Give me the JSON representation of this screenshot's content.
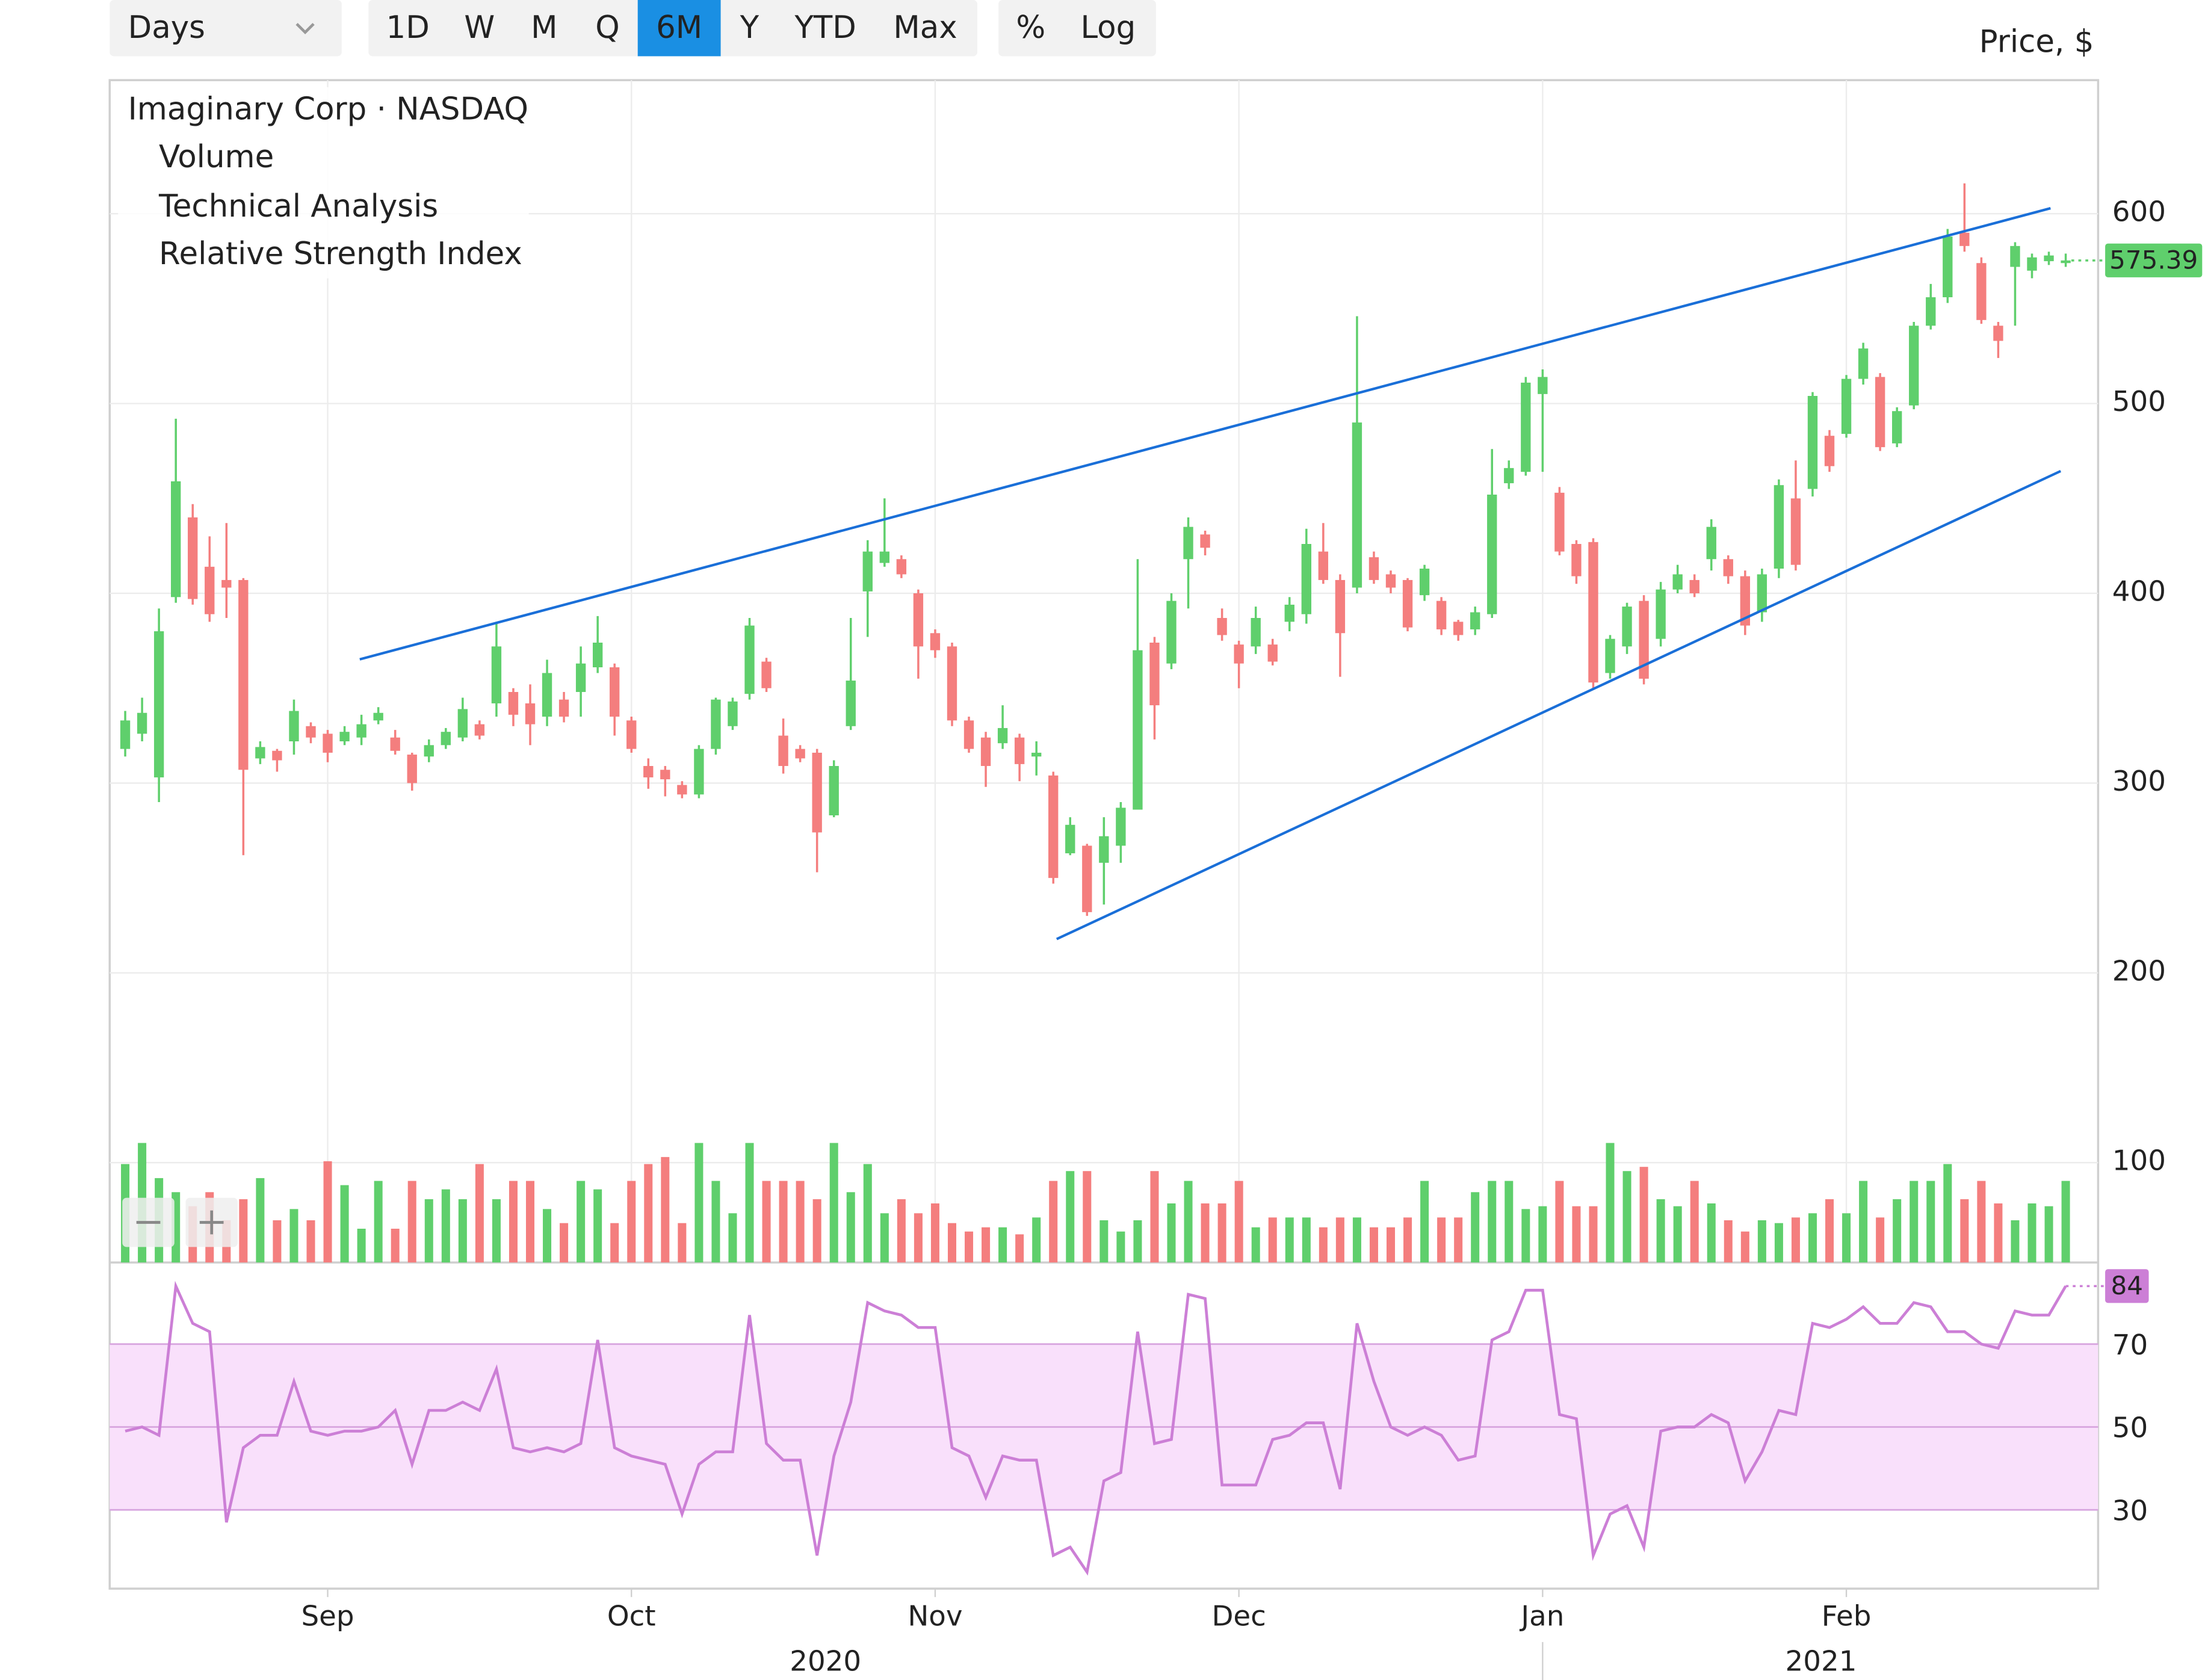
{
  "toolbar": {
    "interval": "Days",
    "ranges": [
      "1D",
      "W",
      "M",
      "Q",
      "6M",
      "Y",
      "YTD",
      "Max"
    ],
    "active": 4,
    "options": [
      "%",
      "Log"
    ]
  },
  "chart_data": {
    "type": "candlestick",
    "title": "Imaginary Corp · NASDAQ",
    "y_label": "Price, $",
    "categories": [
      null,
      null,
      null,
      null,
      null,
      null,
      null,
      null,
      null,
      null,
      null,
      null,
      null,
      null,
      null,
      null,
      null,
      null,
      null,
      null,
      null,
      null,
      null,
      null,
      null,
      null,
      null,
      null,
      null,
      null,
      null,
      null,
      null,
      null,
      null,
      null,
      null,
      null,
      null,
      null,
      null,
      null,
      null,
      null,
      null,
      null,
      null,
      null,
      null,
      null,
      null,
      null,
      null,
      null,
      null,
      null,
      null,
      null,
      null,
      null,
      null,
      null,
      null,
      null,
      null,
      null,
      null,
      null,
      null,
      null,
      null,
      null,
      null,
      null,
      null,
      null,
      null,
      null,
      null,
      null,
      null,
      null,
      null,
      null,
      null,
      null,
      null,
      null,
      null,
      null,
      null,
      null,
      null,
      null,
      null,
      null,
      null,
      null,
      null,
      null,
      null,
      null,
      null,
      null,
      null,
      null,
      null,
      null,
      null,
      null,
      null,
      null,
      null,
      null,
      null,
      null
    ],
    "open": [
      318,
      326,
      303,
      398,
      440,
      414,
      407,
      407,
      313,
      317,
      322,
      330,
      326,
      322,
      324,
      333,
      324,
      315,
      314,
      320,
      324,
      331,
      342,
      348,
      342,
      335,
      344,
      348,
      361,
      361,
      333,
      309,
      307,
      299,
      294,
      318,
      330,
      347,
      364,
      325,
      318,
      316,
      283,
      330,
      401,
      416,
      418,
      400,
      379,
      372,
      333,
      324,
      321,
      324,
      314,
      304,
      263,
      267,
      258,
      267,
      286,
      374,
      363,
      418,
      431,
      387,
      373,
      372,
      373,
      385,
      389,
      422,
      407,
      403,
      419,
      410,
      407,
      399,
      396,
      385,
      381,
      389,
      458,
      464,
      505,
      453,
      426,
      427,
      358,
      372,
      396,
      376,
      402,
      407,
      418,
      418,
      409,
      390,
      413,
      450,
      455,
      483,
      484,
      513,
      514,
      479,
      499,
      541,
      556,
      590,
      574,
      541,
      572,
      570,
      575,
      574
    ],
    "high": [
      338,
      345,
      392,
      492,
      447,
      430,
      437,
      408,
      322,
      318,
      344,
      332,
      328,
      330,
      336,
      340,
      328,
      316,
      323,
      329,
      345,
      333,
      385,
      350,
      352,
      365,
      348,
      372,
      388,
      363,
      335,
      313,
      309,
      301,
      320,
      345,
      345,
      387,
      366,
      334,
      320,
      318,
      312,
      387,
      428,
      450,
      420,
      402,
      381,
      374,
      335,
      327,
      341,
      326,
      322,
      306,
      282,
      268,
      282,
      290,
      418,
      377,
      400,
      440,
      433,
      392,
      375,
      393,
      376,
      398,
      434,
      437,
      410,
      546,
      422,
      412,
      408,
      415,
      398,
      386,
      393,
      476,
      470,
      514,
      518,
      456,
      428,
      429,
      378,
      395,
      399,
      406,
      415,
      410,
      439,
      420,
      412,
      413,
      460,
      470,
      506,
      486,
      515,
      532,
      516,
      498,
      543,
      563,
      592,
      616,
      577,
      543,
      585,
      579,
      580,
      579
    ],
    "low": [
      314,
      322,
      290,
      395,
      394,
      385,
      387,
      262,
      310,
      306,
      315,
      321,
      311,
      320,
      320,
      331,
      315,
      296,
      311,
      318,
      322,
      323,
      335,
      330,
      320,
      330,
      332,
      335,
      358,
      325,
      316,
      297,
      293,
      292,
      292,
      315,
      328,
      344,
      348,
      305,
      311,
      253,
      282,
      328,
      377,
      414,
      408,
      355,
      366,
      330,
      316,
      298,
      318,
      301,
      304,
      247,
      262,
      230,
      236,
      258,
      286,
      323,
      360,
      392,
      420,
      375,
      350,
      368,
      362,
      380,
      384,
      405,
      356,
      400,
      405,
      400,
      380,
      396,
      378,
      375,
      378,
      387,
      455,
      462,
      464,
      420,
      405,
      350,
      355,
      368,
      352,
      372,
      400,
      398,
      412,
      405,
      378,
      385,
      408,
      412,
      451,
      464,
      482,
      510,
      475,
      477,
      497,
      539,
      553,
      580,
      542,
      524,
      541,
      566,
      573,
      572
    ],
    "close": [
      333,
      337,
      380,
      459,
      397,
      389,
      403,
      307,
      319,
      312,
      338,
      324,
      316,
      327,
      331,
      337,
      317,
      300,
      320,
      327,
      339,
      325,
      372,
      336,
      331,
      358,
      335,
      363,
      374,
      335,
      318,
      303,
      302,
      294,
      318,
      344,
      343,
      383,
      350,
      309,
      313,
      274,
      309,
      354,
      422,
      422,
      410,
      372,
      370,
      333,
      318,
      309,
      329,
      310,
      316,
      250,
      278,
      232,
      272,
      287,
      370,
      341,
      396,
      435,
      424,
      378,
      363,
      387,
      364,
      394,
      426,
      407,
      379,
      490,
      407,
      403,
      382,
      413,
      381,
      378,
      390,
      452,
      466,
      511,
      514,
      422,
      409,
      353,
      376,
      393,
      355,
      402,
      410,
      400,
      435,
      409,
      383,
      410,
      457,
      415,
      504,
      467,
      513,
      529,
      477,
      496,
      541,
      556,
      588,
      583,
      544,
      533,
      583,
      577,
      578,
      575.39
    ],
    "up_color": "#5fcf6c",
    "down_color": "#f47e7e",
    "xlim": [
      -0.92,
      116.92
    ],
    "xticks": [
      {
        "value": 12,
        "label": "Sep"
      },
      {
        "value": 30,
        "label": "Oct"
      },
      {
        "value": 48,
        "label": "Nov"
      },
      {
        "value": 66,
        "label": "Dec"
      },
      {
        "value": 84,
        "label": "Jan"
      },
      {
        "value": 102,
        "label": "Feb"
      }
    ],
    "year_ticks": [
      {
        "value": 41.5,
        "label": "2020"
      },
      {
        "value": 100.5,
        "label": "2021"
      }
    ],
    "ylim": [
      47.4,
      670.4
    ],
    "yticks": [
      100,
      200,
      300,
      400,
      500,
      600
    ],
    "grid": true,
    "volume": {
      "name": "Volume",
      "color": "#4cb84c",
      "values": [
        70,
        85,
        60,
        50,
        40,
        50,
        30,
        45,
        60,
        30,
        38,
        30,
        72,
        55,
        24,
        58,
        24,
        58,
        45,
        52,
        45,
        70,
        45,
        58,
        58,
        38,
        28,
        58,
        52,
        28,
        58,
        70,
        75,
        28,
        85,
        58,
        35,
        85,
        58,
        58,
        58,
        45,
        85,
        50,
        70,
        35,
        45,
        35,
        42,
        28,
        22,
        25,
        25,
        20,
        32,
        58,
        65,
        65,
        30,
        22,
        30,
        65,
        42,
        58,
        42,
        42,
        58,
        25,
        32,
        32,
        32,
        25,
        32,
        32,
        25,
        25,
        32,
        58,
        32,
        32,
        50,
        58,
        58,
        38,
        40,
        58,
        40,
        40,
        85,
        65,
        68,
        45,
        40,
        58,
        42,
        30,
        22,
        30,
        28,
        32,
        35,
        45,
        35,
        58,
        32,
        45,
        58,
        58,
        70,
        45,
        58,
        42,
        30,
        42,
        40,
        58
      ]
    },
    "trend": {
      "name": "Technical Analysis",
      "color": "#1a6fd8",
      "lines": [
        {
          "x": [
            13.9,
            114.1
          ],
          "y": [
            365.2,
            602.9
          ]
        },
        {
          "x": [
            55.2,
            114.7
          ],
          "y": [
            217.8,
            464.4
          ]
        }
      ]
    },
    "rsi": {
      "name": "Relative Strength Index",
      "color": "#cc7fd6",
      "ylim": [
        11,
        89.7
      ],
      "yticks": [
        30,
        50,
        70
      ],
      "band": [
        30,
        70
      ],
      "values": [
        49,
        50,
        48,
        84,
        75,
        73,
        27,
        45,
        48,
        48,
        61,
        49,
        48,
        49,
        49,
        50,
        54,
        41,
        54,
        54,
        56,
        54,
        64,
        45,
        44,
        45,
        44,
        46,
        71,
        45,
        43,
        42,
        41,
        29,
        41,
        44,
        44,
        77,
        46,
        42,
        42,
        19,
        43,
        56,
        80,
        78,
        77,
        74,
        74,
        45,
        43,
        33,
        43,
        42,
        42,
        19,
        21,
        15,
        37,
        39,
        73,
        46,
        47,
        82,
        81,
        36,
        36,
        36,
        47,
        48,
        51,
        51,
        35,
        75,
        61,
        50,
        48,
        50,
        48,
        42,
        43,
        71,
        73,
        83,
        83,
        53,
        52,
        19,
        29,
        31,
        21,
        49,
        50,
        50,
        53,
        51,
        37,
        44,
        54,
        53,
        75,
        74,
        76,
        79,
        75,
        75,
        80,
        79,
        73,
        73,
        70,
        69,
        78,
        77,
        77,
        84
      ]
    }
  }
}
